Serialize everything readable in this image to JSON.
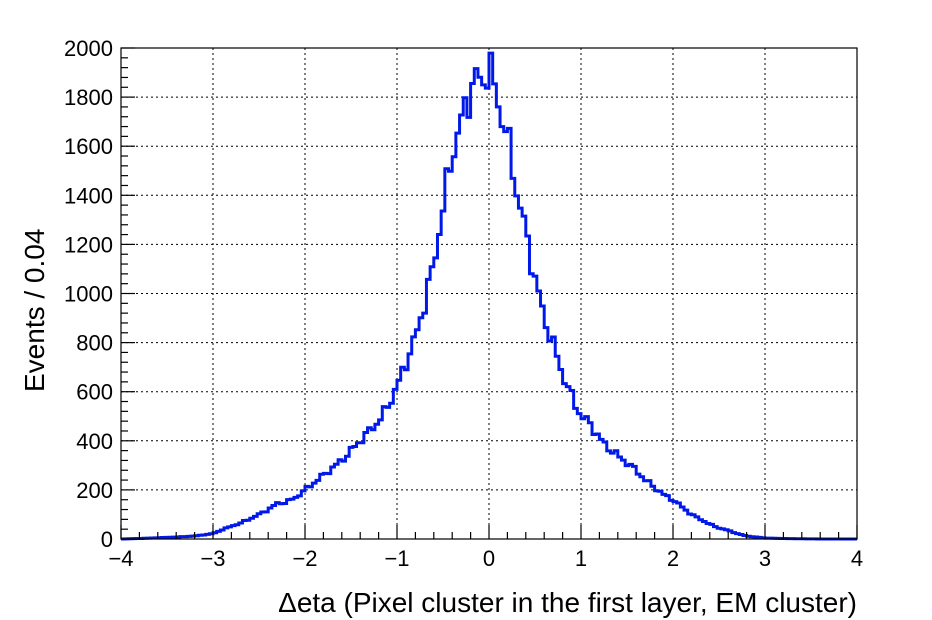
{
  "chart_data": {
    "type": "line",
    "style": "step-histogram",
    "xlabel": "Δeta (Pixel cluster in the first layer, EM cluster)",
    "ylabel": "Events / 0.04",
    "xlim": [
      -4,
      4
    ],
    "ylim": [
      0,
      2000
    ],
    "x_ticks": [
      "−4",
      "−3",
      "−2",
      "−1",
      "0",
      "1",
      "2",
      "3",
      "4"
    ],
    "x_tick_values": [
      -4,
      -3,
      -2,
      -1,
      0,
      1,
      2,
      3,
      4
    ],
    "y_ticks": [
      "0",
      "200",
      "400",
      "600",
      "800",
      "1000",
      "1200",
      "1400",
      "1600",
      "1800",
      "2000"
    ],
    "y_tick_values": [
      0,
      200,
      400,
      600,
      800,
      1000,
      1200,
      1400,
      1600,
      1800,
      2000
    ],
    "grid": true,
    "line_color": "#0018e8",
    "bin_width": 0.04,
    "x": [
      -4.0,
      -3.8,
      -3.6,
      -3.4,
      -3.2,
      -3.0,
      -2.9,
      -2.8,
      -2.7,
      -2.6,
      -2.5,
      -2.4,
      -2.3,
      -2.2,
      -2.1,
      -2.0,
      -1.9,
      -1.8,
      -1.7,
      -1.6,
      -1.5,
      -1.4,
      -1.3,
      -1.2,
      -1.1,
      -1.0,
      -0.9,
      -0.8,
      -0.7,
      -0.6,
      -0.5,
      -0.4,
      -0.3,
      -0.2,
      -0.15,
      -0.1,
      -0.05,
      0.0,
      0.05,
      0.1,
      0.15,
      0.2,
      0.3,
      0.4,
      0.5,
      0.6,
      0.7,
      0.8,
      0.9,
      1.0,
      1.1,
      1.2,
      1.3,
      1.4,
      1.5,
      1.6,
      1.7,
      1.8,
      1.9,
      2.0,
      2.1,
      2.2,
      2.3,
      2.4,
      2.5,
      2.6,
      2.7,
      2.8,
      2.9,
      3.0,
      3.2,
      3.4,
      3.6,
      3.8
    ],
    "values": [
      0,
      2,
      5,
      8,
      12,
      22,
      38,
      52,
      65,
      82,
      100,
      120,
      145,
      150,
      170,
      200,
      230,
      260,
      290,
      320,
      360,
      400,
      440,
      480,
      540,
      620,
      720,
      820,
      960,
      1120,
      1350,
      1570,
      1700,
      1830,
      1880,
      1860,
      1870,
      1940,
      1850,
      1780,
      1700,
      1640,
      1420,
      1250,
      1060,
      900,
      790,
      670,
      580,
      500,
      470,
      410,
      370,
      340,
      310,
      280,
      240,
      210,
      180,
      160,
      130,
      100,
      80,
      60,
      45,
      35,
      22,
      12,
      8,
      4,
      2,
      1,
      0,
      0
    ]
  }
}
